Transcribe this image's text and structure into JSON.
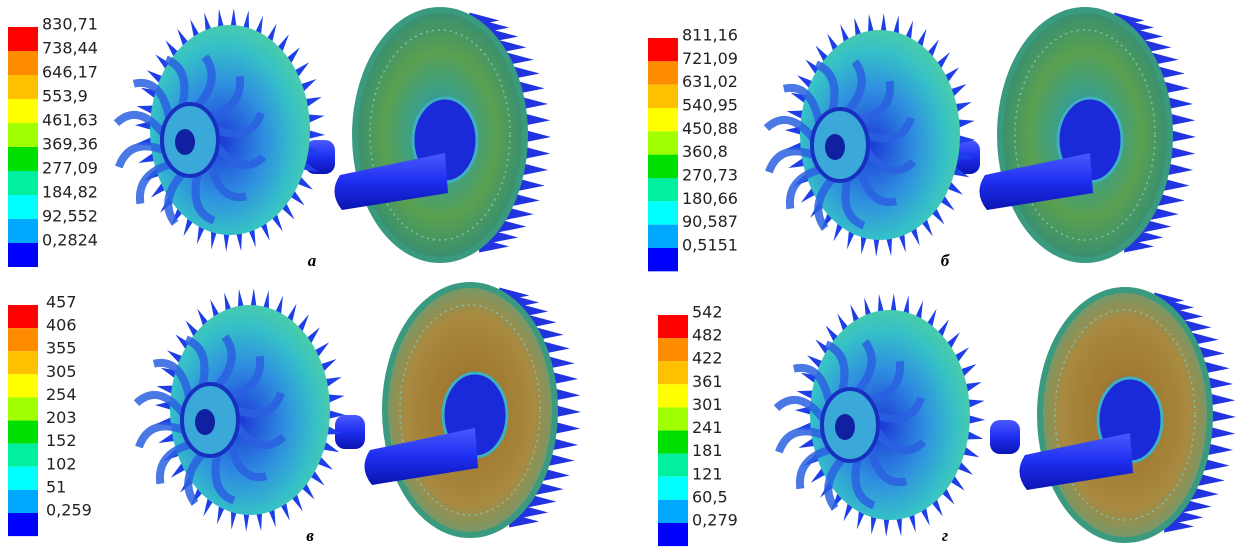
{
  "panels": [
    {
      "label": "а",
      "legend": [
        "830,71",
        "738,44",
        "646,17",
        "553,9",
        "461,63",
        "369,36",
        "277,09",
        "184,82",
        "92,552",
        "0,2824"
      ]
    },
    {
      "label": "б",
      "legend": [
        "811,16",
        "721,09",
        "631,02",
        "540,95",
        "450,88",
        "360,8",
        "270,73",
        "180,66",
        "90,587",
        "0,5151"
      ]
    },
    {
      "label": "в",
      "legend": [
        "457",
        "406",
        "355",
        "305",
        "254",
        "203",
        "152",
        "102",
        "51",
        "0,259"
      ]
    },
    {
      "label": "г",
      "legend": [
        "542",
        "482",
        "422",
        "361",
        "301",
        "241",
        "181",
        "121",
        "60,5",
        "0,279"
      ]
    }
  ]
}
